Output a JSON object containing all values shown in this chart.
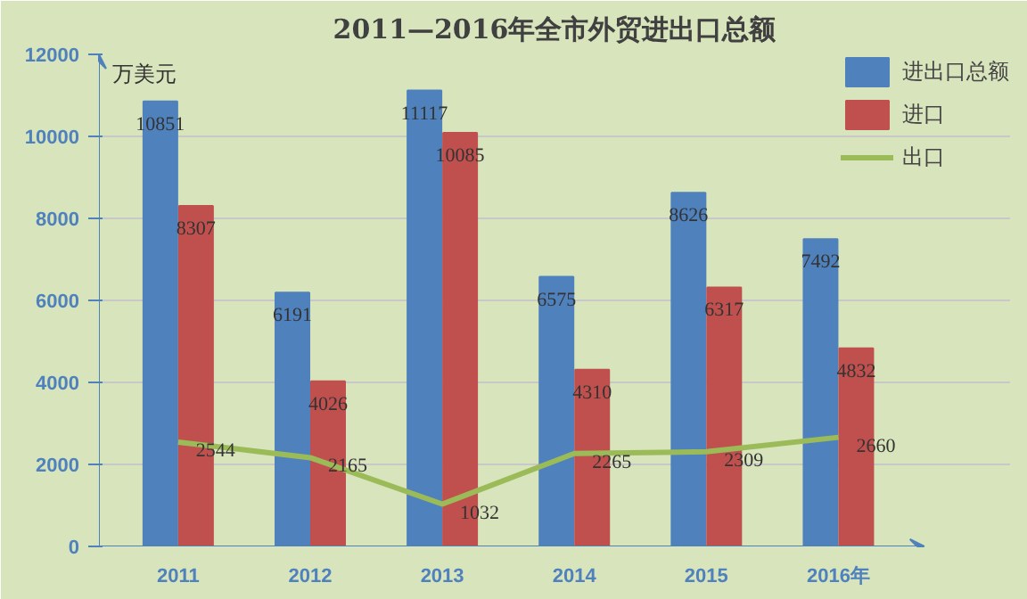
{
  "chart_data": {
    "type": "bar",
    "title": "2011—2016年全市外贸进出口总额",
    "ylabel": "万美元",
    "categories": [
      "2011",
      "2012",
      "2013",
      "2014",
      "2015",
      "2016年"
    ],
    "series": [
      {
        "name": "进出口总额",
        "color": "#4f81bd",
        "values": [
          10851,
          6191,
          11117,
          6575,
          8626,
          7492
        ]
      },
      {
        "name": "进口",
        "color": "#c0504d",
        "values": [
          8307,
          4026,
          10085,
          4310,
          6317,
          4832
        ]
      },
      {
        "name": "出口",
        "type": "line",
        "color": "#9bbb59",
        "values": [
          2544,
          2165,
          1032,
          2265,
          2309,
          2660
        ]
      }
    ],
    "ylim": [
      0,
      12000
    ],
    "yticks": [
      0,
      2000,
      4000,
      6000,
      8000,
      10000,
      12000
    ],
    "grid": "y",
    "legend": "top right",
    "data_labels": true
  }
}
